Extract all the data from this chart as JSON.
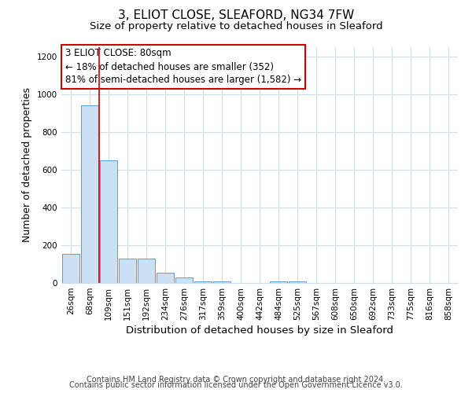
{
  "title": "3, ELIOT CLOSE, SLEAFORD, NG34 7FW",
  "subtitle": "Size of property relative to detached houses in Sleaford",
  "xlabel": "Distribution of detached houses by size in Sleaford",
  "ylabel": "Number of detached properties",
  "categories": [
    "26sqm",
    "68sqm",
    "109sqm",
    "151sqm",
    "192sqm",
    "234sqm",
    "276sqm",
    "317sqm",
    "359sqm",
    "400sqm",
    "442sqm",
    "484sqm",
    "525sqm",
    "567sqm",
    "608sqm",
    "650sqm",
    "692sqm",
    "733sqm",
    "775sqm",
    "816sqm",
    "858sqm"
  ],
  "values": [
    155,
    940,
    650,
    130,
    130,
    55,
    30,
    10,
    10,
    0,
    0,
    10,
    10,
    0,
    0,
    0,
    0,
    0,
    0,
    0,
    0
  ],
  "bar_color": "#cce0f5",
  "bar_edge_color": "#5b9bd5",
  "red_line_x": 1.5,
  "annotation_text": "3 ELIOT CLOSE: 80sqm\n← 18% of detached houses are smaller (352)\n81% of semi-detached houses are larger (1,582) →",
  "annotation_box_edge": "#cc0000",
  "ylim": [
    0,
    1250
  ],
  "yticks": [
    0,
    200,
    400,
    600,
    800,
    1000,
    1200
  ],
  "footer_line1": "Contains HM Land Registry data © Crown copyright and database right 2024.",
  "footer_line2": "Contains public sector information licensed under the Open Government Licence v3.0.",
  "background_color": "#ffffff",
  "grid_color": "#d0dcea",
  "title_fontsize": 11,
  "subtitle_fontsize": 9.5,
  "axis_label_fontsize": 9,
  "tick_fontsize": 7.5,
  "annotation_fontsize": 8.5,
  "footer_fontsize": 7
}
